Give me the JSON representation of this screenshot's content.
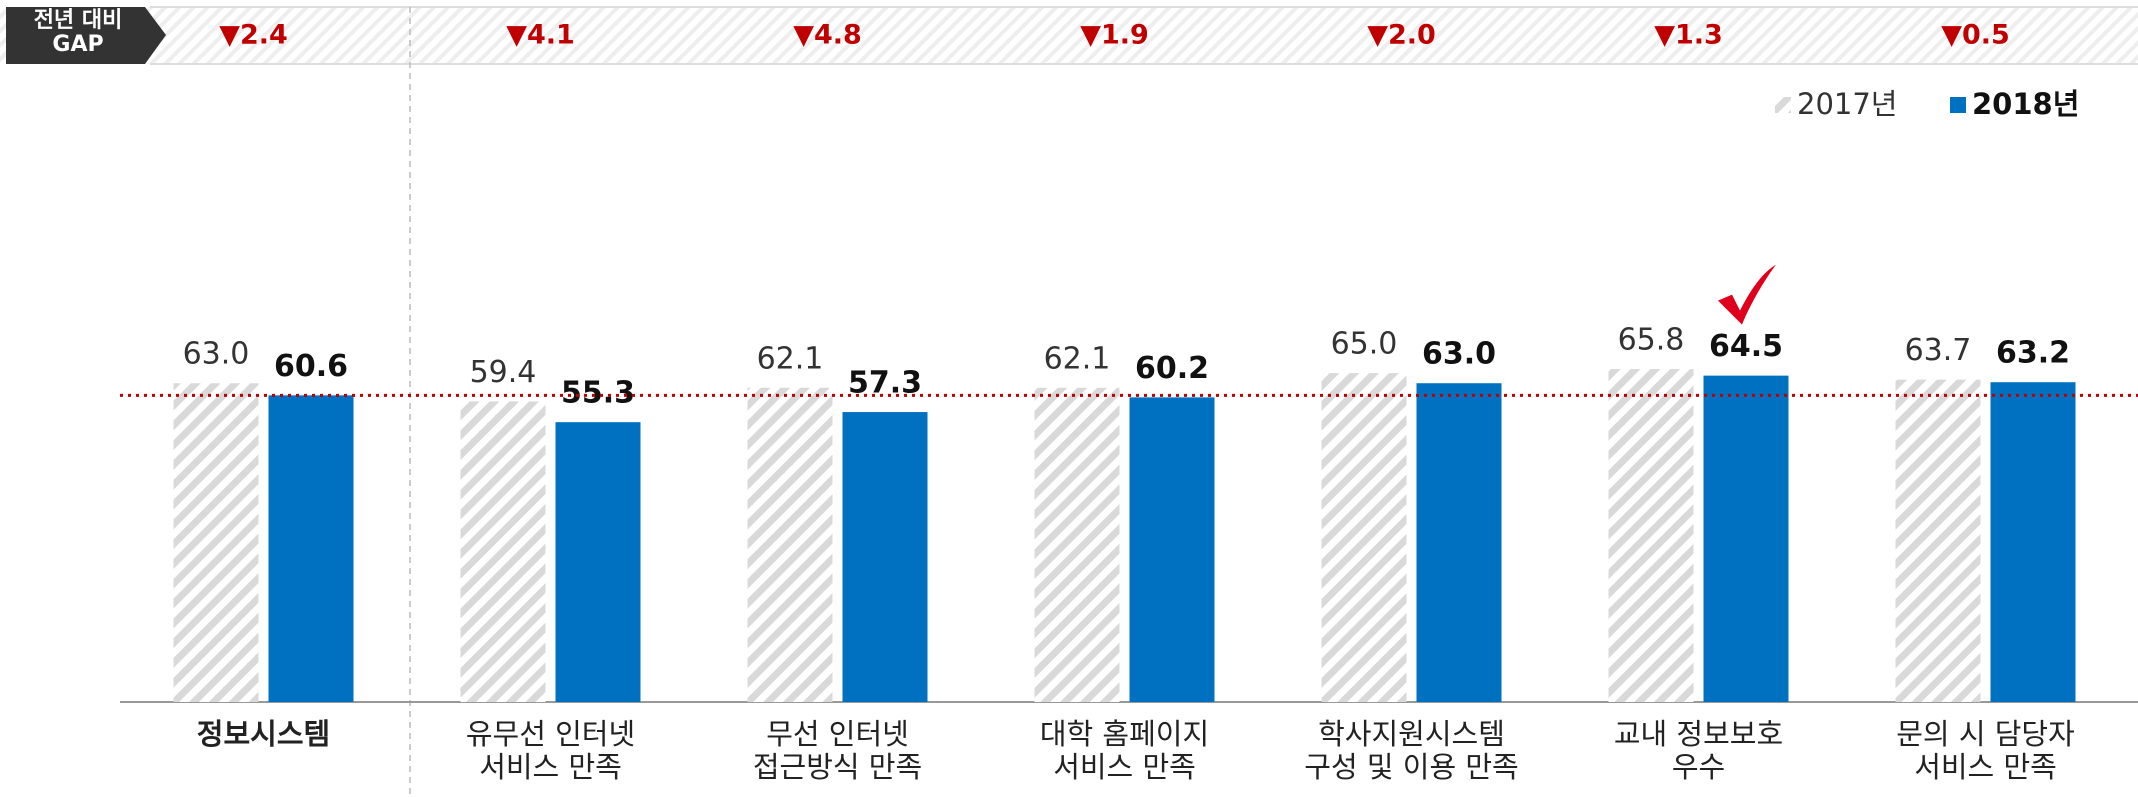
{
  "chart_data": {
    "type": "bar",
    "header_label": "전년 대비\nGAP",
    "categories": [
      "정보시스템",
      "유무선 인터넷\n서비스 만족",
      "무선 인터넷\n접근방식 만족",
      "대학 홈페이지\n서비스 만족",
      "학사지원시스템\n구성 및 이용 만족",
      "교내 정보보호\n우수",
      "문의 시 담당자\n서비스 만족"
    ],
    "gap_labels": [
      "▼2.4",
      "▼4.1",
      "▼4.8",
      "▼1.9",
      "▼2.0",
      "▼1.3",
      "▼0.5"
    ],
    "series": [
      {
        "name": "2017년",
        "color": "#d9d9d9",
        "values": [
          63.0,
          59.4,
          62.1,
          62.1,
          65.0,
          65.8,
          63.7
        ],
        "value_labels": [
          "63.0",
          "59.4",
          "62.1",
          "62.1",
          "65.0",
          "65.8",
          "63.7"
        ]
      },
      {
        "name": "2018년",
        "color": "#0070c0",
        "values": [
          60.6,
          55.3,
          57.3,
          60.2,
          63.0,
          64.5,
          63.2
        ],
        "value_labels": [
          "60.6",
          "55.3",
          "57.3",
          "60.2",
          "63.0",
          "64.5",
          "63.2"
        ]
      }
    ],
    "reference_value": 60.6,
    "highlight_index": 5,
    "ylim": [
      0,
      100
    ]
  }
}
